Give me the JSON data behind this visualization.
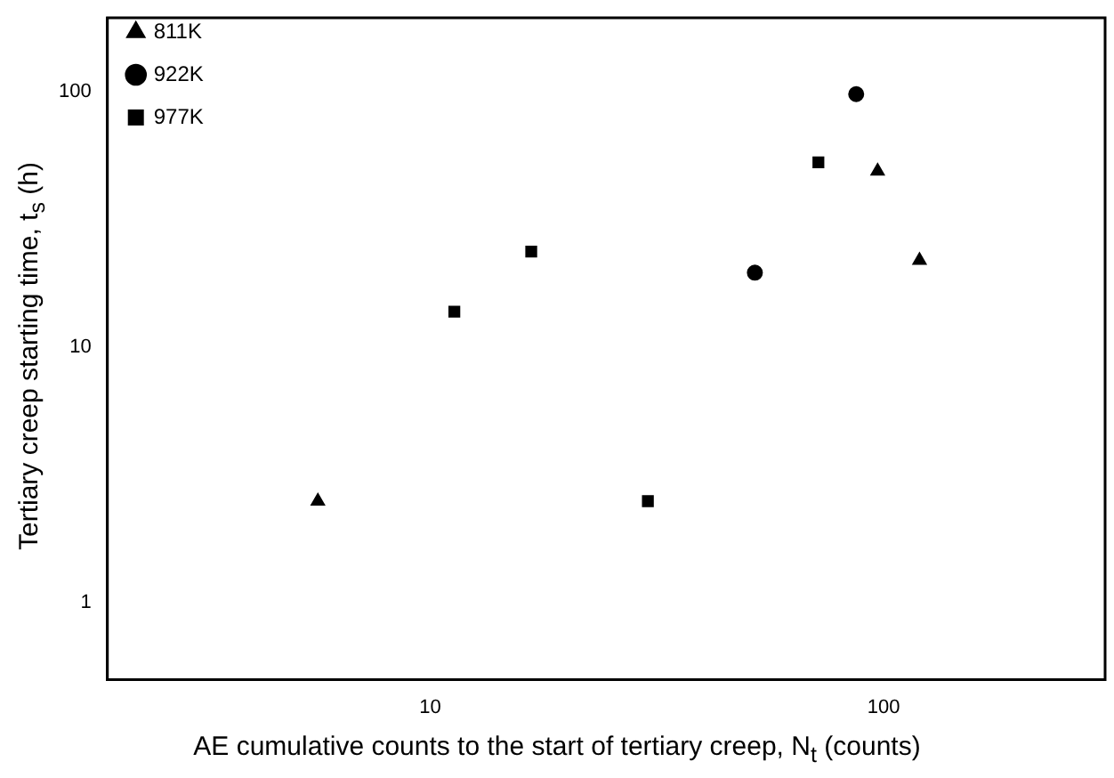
{
  "chart_data": {
    "type": "scatter",
    "xlabel": "AE cumulative counts to the start of tertiary creep, N$_{t}$ (counts)",
    "ylabel": "Tertiary creep starting time, t$_{s}$ (h)",
    "log": "xy",
    "xlim": [
      1.94,
      308
    ],
    "ylim": [
      0.5,
      195
    ],
    "xticks": [
      10,
      100
    ],
    "yticks": [
      1,
      10,
      100
    ],
    "grid": false,
    "legend": "top left",
    "series": [
      {
        "name": "811K",
        "color": "#000000",
        "marker": "triangle",
        "x": [
          5.65,
          97,
          120
        ],
        "values": [
          2.5,
          49,
          21.9
        ]
      },
      {
        "name": "922K",
        "color": "#000000",
        "marker": "circle",
        "x": [
          52,
          87
        ],
        "values": [
          19.6,
          98
        ]
      },
      {
        "name": "977K",
        "color": "#000000",
        "marker": "square",
        "x": [
          11.3,
          16.7,
          30.2,
          71.8
        ],
        "values": [
          13.8,
          23.7,
          2.5,
          53
        ]
      }
    ]
  }
}
